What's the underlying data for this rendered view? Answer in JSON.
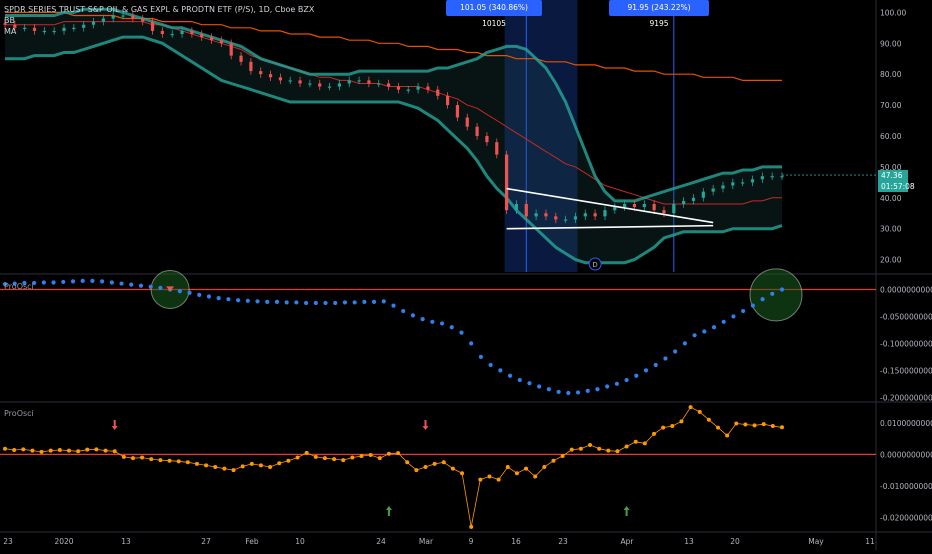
{
  "header": {
    "symbol_line": "SPDR SERIES TRUST S&P OIL & GAS EXPL & PRODTN ETF (P/S), 1D, Cboe BZX",
    "indicator_1": "BB",
    "indicator_2": "MA"
  },
  "measure_boxes": [
    {
      "text": "101.05 (340.86%) 10105"
    },
    {
      "text": "91.95 (243.22%) 9195"
    }
  ],
  "price_tags": {
    "last_price": "47.36",
    "countdown": "01:57:08"
  },
  "event_marker": "D",
  "panes": {
    "oscillator_1_label": "ProOsci",
    "oscillator_2_label": "ProOsci"
  },
  "x_axis_labels": [
    "23",
    "2020",
    "13",
    "27",
    "Feb",
    "10",
    "24",
    "Mar",
    "9",
    "16",
    "23",
    "Apr",
    "13",
    "20",
    "May",
    "11"
  ],
  "chart_data": [
    {
      "type": "line",
      "name": "price",
      "y_ticks": [
        "100.00",
        "90.00",
        "80.00",
        "70.00",
        "60.00",
        "50.00",
        "40.00",
        "30.00",
        "20.00"
      ],
      "ylim": [
        16,
        104
      ],
      "candles_close": [
        96,
        95,
        95,
        94,
        94,
        94,
        95,
        95,
        96,
        97,
        98,
        99,
        99,
        98,
        97,
        94,
        93,
        93,
        94,
        93,
        92,
        91,
        90,
        86,
        84,
        81,
        80,
        79,
        78,
        78,
        77,
        77,
        76,
        76,
        77,
        78,
        78,
        77,
        77,
        76,
        75,
        75,
        76,
        75,
        73,
        70,
        66,
        63,
        60,
        58,
        54,
        36,
        38,
        34,
        35,
        34,
        33,
        33,
        34,
        35,
        34,
        36,
        37,
        38,
        37,
        38,
        36,
        35,
        38,
        39,
        40,
        42,
        43,
        44,
        45,
        45,
        46,
        47,
        47,
        47
      ],
      "bb_upper": [
        99,
        99,
        99,
        99,
        99,
        99,
        100,
        100,
        101,
        101,
        101,
        101,
        100,
        99,
        98,
        97,
        96,
        95,
        95,
        94,
        93,
        92,
        91,
        90,
        89,
        87,
        85,
        84,
        83,
        82,
        81,
        80,
        80,
        80,
        80,
        80,
        81,
        81,
        81,
        81,
        81,
        81,
        81,
        81,
        82,
        82,
        83,
        84,
        85,
        87,
        88,
        89,
        89,
        88,
        85,
        82,
        77,
        71,
        63,
        55,
        47,
        42,
        39,
        39,
        39,
        40,
        41,
        42,
        43,
        44,
        45,
        46,
        47,
        48,
        48,
        49,
        49,
        50,
        50,
        50
      ],
      "bb_lower": [
        85,
        85,
        85,
        86,
        86,
        86,
        87,
        87,
        88,
        89,
        90,
        91,
        92,
        92,
        92,
        91,
        90,
        88,
        86,
        84,
        82,
        80,
        78,
        77,
        76,
        75,
        74,
        73,
        72,
        71,
        71,
        71,
        71,
        71,
        71,
        71,
        71,
        71,
        71,
        71,
        71,
        70,
        69,
        67,
        65,
        62,
        59,
        56,
        52,
        47,
        43,
        40,
        36,
        33,
        30,
        27,
        24,
        22,
        20,
        19,
        19,
        19,
        19,
        19,
        20,
        22,
        24,
        27,
        28,
        29,
        29,
        29,
        29,
        29,
        30,
        30,
        30,
        30,
        30,
        31
      ],
      "ma_fast": [
        96,
        96,
        96,
        96,
        96,
        96,
        97,
        97,
        97,
        97,
        97,
        97,
        97,
        97,
        97,
        96,
        96,
        95,
        94,
        93,
        92,
        91,
        90,
        89,
        88,
        86,
        85,
        84,
        83,
        82,
        81,
        80,
        79,
        79,
        78,
        78,
        77,
        77,
        77,
        76,
        76,
        76,
        76,
        75,
        74,
        73,
        72,
        70,
        69,
        67,
        65,
        63,
        61,
        59,
        57,
        55,
        53,
        51,
        50,
        48,
        46,
        44,
        43,
        42,
        41,
        40,
        39,
        38,
        38,
        38,
        38,
        38,
        38,
        38,
        38,
        38,
        39,
        39,
        40,
        40
      ],
      "ma_slow": [
        100,
        100,
        100,
        100,
        100,
        100,
        100,
        99,
        99,
        99,
        99,
        99,
        98,
        98,
        98,
        98,
        97,
        97,
        97,
        97,
        96,
        96,
        96,
        95,
        95,
        95,
        94,
        94,
        94,
        93,
        93,
        93,
        92,
        92,
        92,
        91,
        91,
        91,
        90,
        90,
        90,
        89,
        89,
        89,
        88,
        88,
        88,
        87,
        87,
        86,
        86,
        86,
        85,
        85,
        85,
        84,
        84,
        84,
        83,
        83,
        83,
        82,
        82,
        82,
        81,
        81,
        81,
        80,
        80,
        80,
        80,
        79,
        79,
        79,
        79,
        78,
        78,
        78,
        78,
        78
      ]
    },
    {
      "type": "scatter",
      "name": "ProOsci 1",
      "y_ticks": [
        "0.0000000000",
        "-0.0500000000",
        "-0.1000000000",
        "-0.1500000000",
        "-0.2000000000"
      ],
      "ylim": [
        -0.205,
        0.025
      ],
      "zero_line": 0,
      "values": [
        0.01,
        0.011,
        0.012,
        0.012,
        0.013,
        0.013,
        0.014,
        0.015,
        0.016,
        0.016,
        0.015,
        0.013,
        0.011,
        0.009,
        0.007,
        0.005,
        0.003,
        0.0,
        -0.003,
        -0.006,
        -0.01,
        -0.013,
        -0.016,
        -0.018,
        -0.02,
        -0.021,
        -0.022,
        -0.023,
        -0.023,
        -0.024,
        -0.024,
        -0.025,
        -0.025,
        -0.025,
        -0.025,
        -0.024,
        -0.024,
        -0.023,
        -0.023,
        -0.022,
        -0.03,
        -0.04,
        -0.048,
        -0.055,
        -0.06,
        -0.063,
        -0.07,
        -0.08,
        -0.1,
        -0.125,
        -0.14,
        -0.15,
        -0.16,
        -0.168,
        -0.174,
        -0.18,
        -0.185,
        -0.19,
        -0.192,
        -0.191,
        -0.188,
        -0.185,
        -0.18,
        -0.175,
        -0.168,
        -0.16,
        -0.15,
        -0.14,
        -0.128,
        -0.115,
        -0.1,
        -0.085,
        -0.078,
        -0.07,
        -0.06,
        -0.05,
        -0.04,
        -0.03,
        -0.018,
        -0.008,
        0.0
      ]
    },
    {
      "type": "line",
      "name": "ProOsci 2",
      "y_ticks": [
        "0.0100000000",
        "0.0000000000",
        "-0.0100000000",
        "-0.0200000000"
      ],
      "ylim": [
        -0.024,
        0.016
      ],
      "zero_line": 0,
      "values": [
        0.0018,
        0.0014,
        0.0016,
        0.0012,
        0.0008,
        0.0012,
        0.0014,
        0.0012,
        0.001,
        0.0015,
        0.0016,
        0.0012,
        0.001,
        -0.0008,
        -0.0012,
        -0.001,
        -0.0015,
        -0.0018,
        -0.002,
        -0.0022,
        -0.0025,
        -0.003,
        -0.0035,
        -0.004,
        -0.0045,
        -0.005,
        -0.0038,
        -0.003,
        -0.0035,
        -0.004,
        -0.0028,
        -0.002,
        -0.001,
        0.0005,
        -0.0008,
        -0.0012,
        -0.0015,
        -0.0018,
        -0.001,
        -0.0005,
        -0.0002,
        -0.0012,
        0.0002,
        0.0004,
        -0.0025,
        -0.005,
        -0.004,
        -0.003,
        -0.0025,
        -0.0045,
        -0.006,
        -0.023,
        -0.008,
        -0.007,
        -0.008,
        -0.004,
        -0.006,
        -0.0045,
        -0.007,
        -0.004,
        -0.002,
        -0.0005,
        0.0015,
        0.0018,
        0.003,
        0.0018,
        0.0012,
        0.001,
        0.0025,
        0.004,
        0.0035,
        0.0065,
        0.0085,
        0.009,
        0.0105,
        0.015,
        0.0135,
        0.011,
        0.0085,
        0.006,
        0.0098,
        0.0095,
        0.0092,
        0.0096,
        0.009,
        0.0086
      ]
    }
  ]
}
